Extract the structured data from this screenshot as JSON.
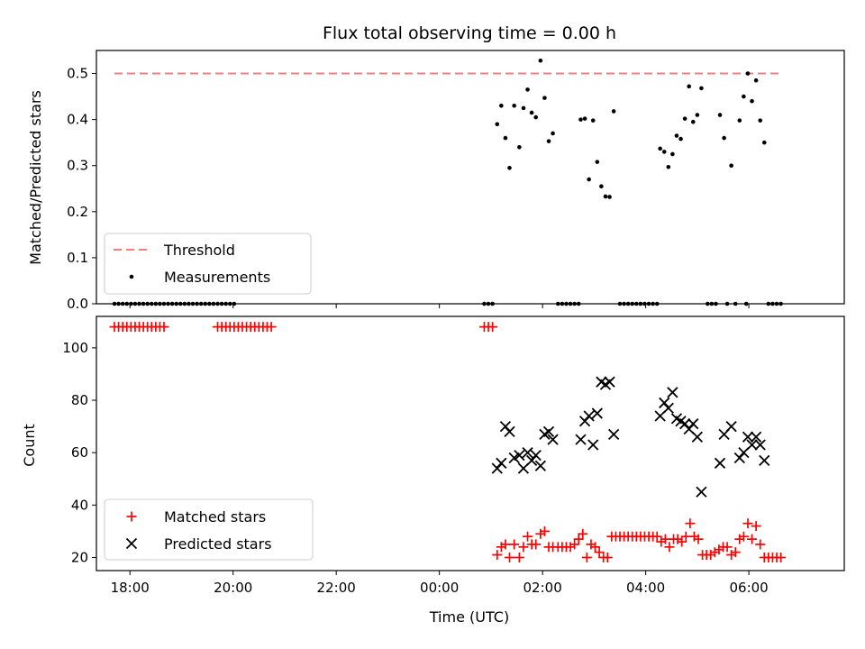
{
  "chart_data": [
    {
      "type": "scatter",
      "title": "Flux total observing time = 0.00 h",
      "ylabel": "Matched/Predicted stars",
      "xlabel": "",
      "x_unit": "hours since 00:00 UTC (negative = previous evening)",
      "xlim": [
        -6.65,
        7.85
      ],
      "ylim": [
        0,
        0.55
      ],
      "yticks": [
        "0.0",
        "0.1",
        "0.2",
        "0.3",
        "0.4",
        "0.5"
      ],
      "legend_position": "lower-left",
      "threshold": {
        "name": "Threshold",
        "value": 0.5,
        "x_start": -6.3,
        "x_end": 6.65,
        "color": "#f08080"
      },
      "series": [
        {
          "name": "Measurements",
          "color": "#000000",
          "points": [
            [
              -6.3,
              0
            ],
            [
              -6.22,
              0
            ],
            [
              -6.14,
              0
            ],
            [
              -6.06,
              0
            ],
            [
              -5.98,
              0
            ],
            [
              -5.9,
              0
            ],
            [
              -5.82,
              0
            ],
            [
              -5.74,
              0
            ],
            [
              -5.66,
              0
            ],
            [
              -5.58,
              0
            ],
            [
              -5.5,
              0
            ],
            [
              -5.42,
              0
            ],
            [
              -5.34,
              0
            ],
            [
              -5.26,
              0
            ],
            [
              -5.18,
              0
            ],
            [
              -5.1,
              0
            ],
            [
              -5.02,
              0
            ],
            [
              -4.94,
              0
            ],
            [
              -4.86,
              0
            ],
            [
              -4.78,
              0
            ],
            [
              -4.7,
              0
            ],
            [
              -4.62,
              0
            ],
            [
              -4.54,
              0
            ],
            [
              -4.46,
              0
            ],
            [
              -4.38,
              0
            ],
            [
              -4.3,
              0
            ],
            [
              -4.22,
              0
            ],
            [
              -4.14,
              0
            ],
            [
              -4.06,
              0
            ],
            [
              -3.98,
              0
            ],
            [
              0.87,
              0
            ],
            [
              0.95,
              0
            ],
            [
              1.03,
              0
            ],
            [
              1.12,
              0.39
            ],
            [
              1.2,
              0.43
            ],
            [
              1.28,
              0.36
            ],
            [
              1.36,
              0.295
            ],
            [
              1.45,
              0.43
            ],
            [
              1.55,
              0.34
            ],
            [
              1.63,
              0.425
            ],
            [
              1.71,
              0.465
            ],
            [
              1.79,
              0.415
            ],
            [
              1.87,
              0.405
            ],
            [
              1.96,
              0.528
            ],
            [
              2.04,
              0.447
            ],
            [
              2.12,
              0.353
            ],
            [
              2.2,
              0.37
            ],
            [
              2.3,
              0
            ],
            [
              2.38,
              0
            ],
            [
              2.46,
              0
            ],
            [
              2.54,
              0
            ],
            [
              2.62,
              0
            ],
            [
              2.7,
              0
            ],
            [
              2.74,
              0.4
            ],
            [
              2.82,
              0.402
            ],
            [
              2.9,
              0.27
            ],
            [
              2.98,
              0.398
            ],
            [
              3.06,
              0.308
            ],
            [
              3.14,
              0.255
            ],
            [
              3.22,
              0.233
            ],
            [
              3.3,
              0.232
            ],
            [
              3.38,
              0.418
            ],
            [
              3.5,
              0
            ],
            [
              3.58,
              0
            ],
            [
              3.66,
              0
            ],
            [
              3.74,
              0
            ],
            [
              3.82,
              0
            ],
            [
              3.9,
              0
            ],
            [
              3.98,
              0
            ],
            [
              4.06,
              0
            ],
            [
              4.14,
              0
            ],
            [
              4.22,
              0
            ],
            [
              4.28,
              0.337
            ],
            [
              4.36,
              0.33
            ],
            [
              4.44,
              0.297
            ],
            [
              4.52,
              0.325
            ],
            [
              4.6,
              0.365
            ],
            [
              4.68,
              0.358
            ],
            [
              4.76,
              0.402
            ],
            [
              4.84,
              0.472
            ],
            [
              4.92,
              0.395
            ],
            [
              5.0,
              0.41
            ],
            [
              5.08,
              0.468
            ],
            [
              5.2,
              0
            ],
            [
              5.28,
              0
            ],
            [
              5.36,
              0
            ],
            [
              5.44,
              0.41
            ],
            [
              5.52,
              0.36
            ],
            [
              5.66,
              0.3
            ],
            [
              5.58,
              0
            ],
            [
              5.74,
              0
            ],
            [
              5.95,
              0
            ],
            [
              5.82,
              0.398
            ],
            [
              5.9,
              0.45
            ],
            [
              5.98,
              0.5
            ],
            [
              6.06,
              0.44
            ],
            [
              6.14,
              0.485
            ],
            [
              6.22,
              0.398
            ],
            [
              6.3,
              0.35
            ],
            [
              6.38,
              0
            ],
            [
              6.46,
              0
            ],
            [
              6.54,
              0
            ],
            [
              6.62,
              0
            ]
          ]
        }
      ]
    },
    {
      "type": "scatter",
      "title": "",
      "ylabel": "Count",
      "xlabel": "Time (UTC)",
      "x_unit": "hours since 00:00 UTC (negative = previous evening)",
      "xlim": [
        -6.65,
        7.85
      ],
      "ylim": [
        15,
        112
      ],
      "yticks": [
        "20",
        "40",
        "60",
        "80",
        "100"
      ],
      "xticks": [
        {
          "value": -6,
          "label": "18:00"
        },
        {
          "value": -4,
          "label": "20:00"
        },
        {
          "value": -2,
          "label": "22:00"
        },
        {
          "value": 0,
          "label": "00:00"
        },
        {
          "value": 2,
          "label": "02:00"
        },
        {
          "value": 4,
          "label": "04:00"
        },
        {
          "value": 6,
          "label": "06:00"
        }
      ],
      "legend_position": "lower-left",
      "series": [
        {
          "name": "Matched stars",
          "marker": "plus",
          "color": "#ff0000",
          "points": [
            [
              -6.3,
              108
            ],
            [
              -6.22,
              108
            ],
            [
              -6.14,
              108
            ],
            [
              -6.06,
              108
            ],
            [
              -5.98,
              108
            ],
            [
              -5.9,
              108
            ],
            [
              -5.82,
              108
            ],
            [
              -5.74,
              108
            ],
            [
              -5.66,
              108
            ],
            [
              -5.58,
              108
            ],
            [
              -5.5,
              108
            ],
            [
              -5.42,
              108
            ],
            [
              -5.34,
              108
            ],
            [
              -4.3,
              108
            ],
            [
              -4.22,
              108
            ],
            [
              -4.14,
              108
            ],
            [
              -4.06,
              108
            ],
            [
              -3.98,
              108
            ],
            [
              -3.9,
              108
            ],
            [
              -3.82,
              108
            ],
            [
              -3.74,
              108
            ],
            [
              -3.66,
              108
            ],
            [
              -3.58,
              108
            ],
            [
              -3.5,
              108
            ],
            [
              -3.42,
              108
            ],
            [
              -3.34,
              108
            ],
            [
              -3.26,
              108
            ],
            [
              0.87,
              108
            ],
            [
              0.95,
              108
            ],
            [
              1.03,
              108
            ],
            [
              1.12,
              21
            ],
            [
              1.2,
              24
            ],
            [
              1.28,
              25
            ],
            [
              1.36,
              20
            ],
            [
              1.45,
              25
            ],
            [
              1.55,
              20
            ],
            [
              1.63,
              24
            ],
            [
              1.71,
              28
            ],
            [
              1.79,
              25
            ],
            [
              1.87,
              25
            ],
            [
              1.96,
              29
            ],
            [
              2.04,
              30
            ],
            [
              2.12,
              24
            ],
            [
              2.2,
              24
            ],
            [
              2.3,
              24
            ],
            [
              2.38,
              24
            ],
            [
              2.46,
              24
            ],
            [
              2.54,
              24
            ],
            [
              2.62,
              25
            ],
            [
              2.7,
              27
            ],
            [
              2.78,
              29
            ],
            [
              2.86,
              20
            ],
            [
              2.94,
              25
            ],
            [
              3.02,
              24
            ],
            [
              3.1,
              22
            ],
            [
              3.18,
              20
            ],
            [
              3.26,
              20
            ],
            [
              3.34,
              28
            ],
            [
              3.42,
              28
            ],
            [
              3.5,
              28
            ],
            [
              3.58,
              28
            ],
            [
              3.66,
              28
            ],
            [
              3.74,
              28
            ],
            [
              3.82,
              28
            ],
            [
              3.9,
              28
            ],
            [
              3.98,
              28
            ],
            [
              4.06,
              28
            ],
            [
              4.14,
              28
            ],
            [
              4.22,
              28
            ],
            [
              4.3,
              26
            ],
            [
              4.38,
              27
            ],
            [
              4.46,
              24
            ],
            [
              4.54,
              27
            ],
            [
              4.62,
              27
            ],
            [
              4.7,
              26
            ],
            [
              4.78,
              28
            ],
            [
              4.86,
              33
            ],
            [
              4.94,
              28
            ],
            [
              5.02,
              27
            ],
            [
              5.1,
              21
            ],
            [
              5.18,
              21
            ],
            [
              5.26,
              21
            ],
            [
              5.34,
              22
            ],
            [
              5.42,
              23
            ],
            [
              5.5,
              24
            ],
            [
              5.58,
              24
            ],
            [
              5.66,
              21
            ],
            [
              5.74,
              22
            ],
            [
              5.82,
              27
            ],
            [
              5.9,
              28
            ],
            [
              5.98,
              33
            ],
            [
              6.06,
              27
            ],
            [
              6.14,
              32
            ],
            [
              6.22,
              25
            ],
            [
              6.3,
              20
            ],
            [
              6.38,
              20
            ],
            [
              6.46,
              20
            ],
            [
              6.54,
              20
            ],
            [
              6.62,
              20
            ]
          ]
        },
        {
          "name": "Predicted stars",
          "marker": "x",
          "color": "#000000",
          "points": [
            [
              1.12,
              54
            ],
            [
              1.2,
              56
            ],
            [
              1.28,
              70
            ],
            [
              1.36,
              68
            ],
            [
              1.45,
              58
            ],
            [
              1.55,
              59
            ],
            [
              1.63,
              54
            ],
            [
              1.71,
              60
            ],
            [
              1.79,
              57
            ],
            [
              1.87,
              59
            ],
            [
              1.96,
              55
            ],
            [
              2.04,
              67
            ],
            [
              2.12,
              68
            ],
            [
              2.2,
              65
            ],
            [
              2.74,
              65
            ],
            [
              2.82,
              72
            ],
            [
              2.9,
              74
            ],
            [
              2.98,
              63
            ],
            [
              3.06,
              75
            ],
            [
              3.14,
              87
            ],
            [
              3.22,
              86
            ],
            [
              3.3,
              87
            ],
            [
              3.38,
              67
            ],
            [
              4.28,
              74
            ],
            [
              4.36,
              79
            ],
            [
              4.44,
              77
            ],
            [
              4.52,
              83
            ],
            [
              4.6,
              73
            ],
            [
              4.68,
              72
            ],
            [
              4.76,
              71
            ],
            [
              4.84,
              69
            ],
            [
              4.92,
              71
            ],
            [
              5.0,
              66
            ],
            [
              5.08,
              45
            ],
            [
              5.44,
              56
            ],
            [
              5.52,
              67
            ],
            [
              5.66,
              70
            ],
            [
              5.82,
              58
            ],
            [
              5.9,
              60
            ],
            [
              5.98,
              66
            ],
            [
              6.06,
              63
            ],
            [
              6.14,
              66
            ],
            [
              6.22,
              63
            ],
            [
              6.3,
              57
            ]
          ]
        }
      ]
    }
  ]
}
